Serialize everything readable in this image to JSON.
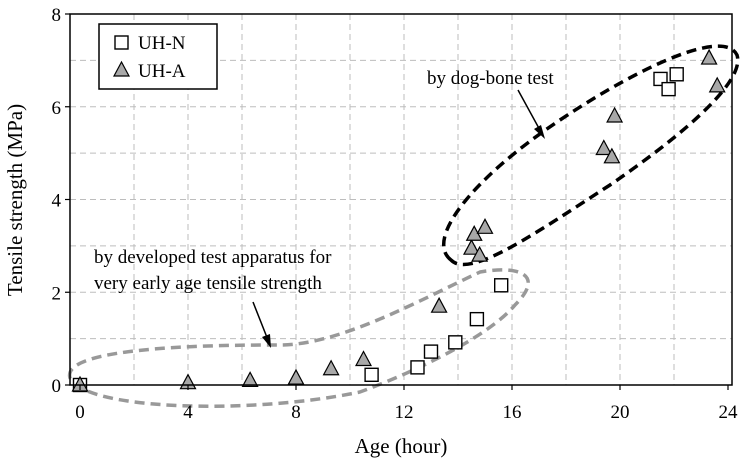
{
  "chart_data": {
    "type": "scatter",
    "xlabel": "Age (hour)",
    "ylabel": "Tensile strength (MPa)",
    "xlim": [
      0,
      24
    ],
    "ylim": [
      0,
      8
    ],
    "xticks": [
      0,
      4,
      8,
      12,
      16,
      20,
      24
    ],
    "yticks": [
      0,
      2,
      4,
      6,
      8
    ],
    "grid": true,
    "legend_position": "top-left",
    "series": [
      {
        "name": "UH-N",
        "marker": "open-square",
        "color": "#000000",
        "points": [
          {
            "x": 0.0,
            "y": 0.0
          },
          {
            "x": 10.8,
            "y": 0.22
          },
          {
            "x": 12.5,
            "y": 0.38
          },
          {
            "x": 13.0,
            "y": 0.72
          },
          {
            "x": 13.9,
            "y": 0.92
          },
          {
            "x": 14.7,
            "y": 1.42
          },
          {
            "x": 15.6,
            "y": 2.15
          },
          {
            "x": 21.5,
            "y": 6.6
          },
          {
            "x": 21.8,
            "y": 6.38
          },
          {
            "x": 22.1,
            "y": 6.7
          }
        ]
      },
      {
        "name": "UH-A",
        "marker": "filled-triangle",
        "color": "#a8a8a8",
        "points": [
          {
            "x": 0.0,
            "y": 0.0
          },
          {
            "x": 4.0,
            "y": 0.05
          },
          {
            "x": 6.3,
            "y": 0.1
          },
          {
            "x": 8.0,
            "y": 0.15
          },
          {
            "x": 9.3,
            "y": 0.35
          },
          {
            "x": 10.5,
            "y": 0.55
          },
          {
            "x": 13.3,
            "y": 1.7
          },
          {
            "x": 14.5,
            "y": 2.95
          },
          {
            "x": 14.6,
            "y": 3.25
          },
          {
            "x": 14.8,
            "y": 2.8
          },
          {
            "x": 15.0,
            "y": 3.4
          },
          {
            "x": 19.4,
            "y": 5.1
          },
          {
            "x": 19.7,
            "y": 4.92
          },
          {
            "x": 19.8,
            "y": 5.8
          },
          {
            "x": 23.3,
            "y": 7.05
          },
          {
            "x": 23.6,
            "y": 6.45
          }
        ]
      }
    ],
    "annotations": [
      {
        "text": "by dog-bone test",
        "ellipse_color": "#000000"
      },
      {
        "text_lines": [
          "by developed test apparatus for",
          "very early age tensile strength"
        ],
        "ellipse_color": "#999999"
      }
    ]
  }
}
